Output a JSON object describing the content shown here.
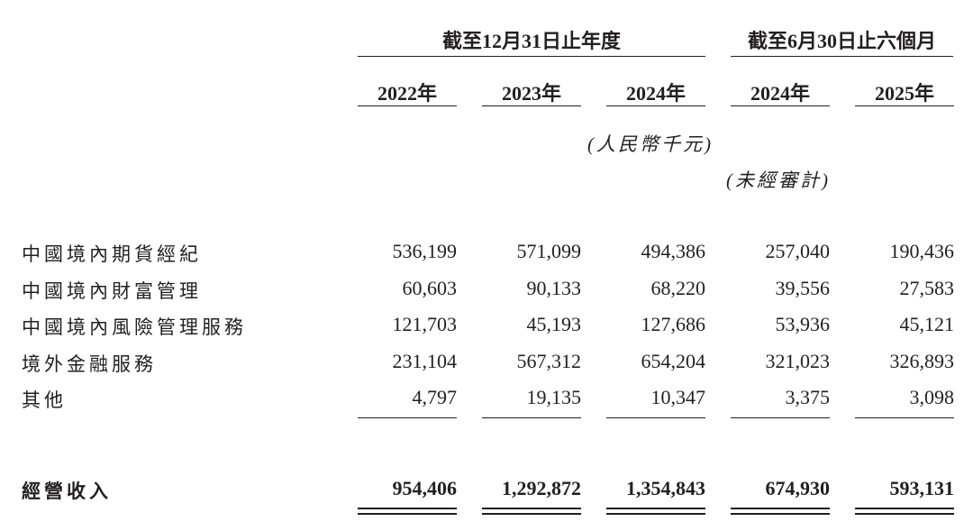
{
  "header": {
    "group_annual": "截至12月31日止年度",
    "group_half": "截至6月30日止六個月",
    "years": [
      "2022年",
      "2023年",
      "2024年",
      "2024年",
      "2025年"
    ],
    "currency_note": "(人民幣千元)",
    "unaudited_note": "(未經審計)"
  },
  "rows": [
    {
      "label": "中國境內期貨經紀",
      "values": [
        "536,199",
        "571,099",
        "494,386",
        "257,040",
        "190,436"
      ]
    },
    {
      "label": "中國境內財富管理",
      "values": [
        "60,603",
        "90,133",
        "68,220",
        "39,556",
        "27,583"
      ]
    },
    {
      "label": "中國境內風險管理服務",
      "values": [
        "121,703",
        "45,193",
        "127,686",
        "53,936",
        "45,121"
      ]
    },
    {
      "label": "境外金融服務",
      "values": [
        "231,104",
        "567,312",
        "654,204",
        "321,023",
        "326,893"
      ]
    },
    {
      "label": "其他",
      "values": [
        "4,797",
        "19,135",
        "10,347",
        "3,375",
        "3,098"
      ]
    }
  ],
  "total": {
    "label": "經營收入",
    "values": [
      "954,406",
      "1,292,872",
      "1,354,843",
      "674,930",
      "593,131"
    ]
  }
}
